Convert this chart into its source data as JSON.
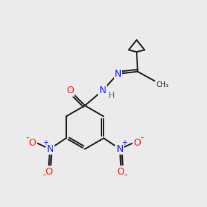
{
  "background_color": "#ebebeb",
  "line_color": "#1a1a1a",
  "bond_width": 1.5,
  "atom_colors": {
    "N": "#2020ff",
    "O": "#ff2020",
    "H": "#3a9090",
    "C": "#1a1a1a"
  },
  "font_size_atom": 10,
  "font_size_plus": 7,
  "font_size_minus": 10,
  "font_size_H": 9
}
